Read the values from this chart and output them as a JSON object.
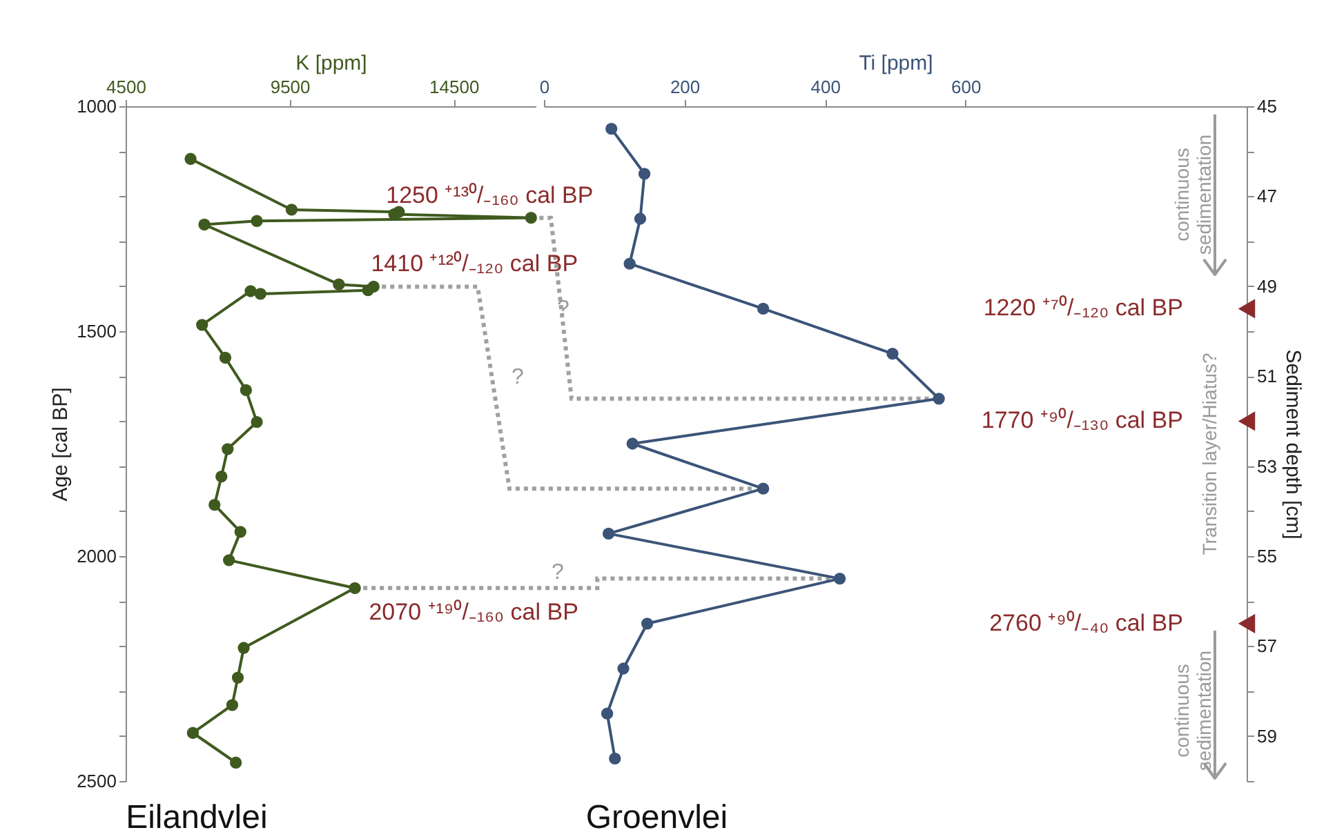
{
  "chart_data": [
    {
      "type": "line",
      "title": "Eilandvlei",
      "xlabel": "K [ppm]",
      "ylabel": "Age [cal BP]",
      "xlim": [
        4500,
        17000
      ],
      "xticks": [
        4500,
        9500,
        14500
      ],
      "ylim": [
        2500,
        1000
      ],
      "yticks": [
        1000,
        {
          "value": 1100,
          "label": null
        },
        {
          "value": 1200,
          "label": null
        },
        {
          "value": 1300,
          "label": null
        },
        {
          "value": 1400,
          "label": null
        },
        1500,
        {
          "value": 1600,
          "label": null
        },
        {
          "value": 1700,
          "label": null
        },
        {
          "value": 1800,
          "label": null
        },
        {
          "value": 1900,
          "label": null
        },
        2000,
        {
          "value": 2100,
          "label": null
        },
        {
          "value": 2200,
          "label": null
        },
        {
          "value": 2300,
          "label": null
        },
        {
          "value": 2400,
          "label": null
        },
        2500
      ],
      "grid": false,
      "marker": "circle",
      "line_style": "solid",
      "series": [
        {
          "color": "#3f5a1f",
          "x": [
            6480,
            9560,
            12830,
            12690,
            16860,
            8500,
            6900,
            11000,
            12060,
            11890,
            8610,
            8310,
            6830,
            7540,
            8170,
            8500,
            7610,
            7420,
            7210,
            8000,
            7650,
            11490,
            8100,
            7920,
            7750,
            6550,
            7860
          ],
          "values": [
            1117,
            1230,
            1235,
            1240,
            1248,
            1255,
            1263,
            1396,
            1401,
            1409,
            1417,
            1411,
            1486,
            1559,
            1631,
            1702,
            1762,
            1823,
            1886,
            1946,
            2009,
            2071,
            2204,
            2270,
            2331,
            2393,
            2459
          ]
        }
      ],
      "annotations": [
        {
          "text": "1250 ⁺¹³⁰/₋₁₆₀ cal BP",
          "x": 16860,
          "y": 1248
        },
        {
          "text": "1410 ⁺¹²⁰/₋₁₂₀ cal BP",
          "x": 12060,
          "y": 1401
        },
        {
          "text": "2070 ⁺¹⁹⁰/₋₁₆₀ cal BP",
          "x": 11490,
          "y": 2071
        },
        "?",
        "?",
        "?"
      ]
    },
    {
      "type": "line",
      "title": "Groenvlei",
      "xlabel": "Ti [ppm]",
      "ylabel": "Sediment depth [cm]",
      "xlim": [
        0,
        1000
      ],
      "xticks": [
        0,
        200,
        400,
        600
      ],
      "ylim": [
        60,
        45
      ],
      "yticks": [
        45,
        {
          "value": 46,
          "label": null
        },
        47,
        {
          "value": 48,
          "label": null
        },
        49,
        {
          "value": 50,
          "label": null
        },
        51,
        {
          "value": 52,
          "label": null
        },
        53,
        {
          "value": 54,
          "label": null
        },
        55,
        {
          "value": 56,
          "label": null
        },
        57,
        {
          "value": 58,
          "label": null
        },
        59,
        {
          "value": 60,
          "label": null
        }
      ],
      "grid": false,
      "marker": "circle",
      "line_style": "solid",
      "series": [
        {
          "color": "#3b5478",
          "x": [
            96,
            143,
            137,
            122,
            312,
            496,
            562,
            126,
            312,
            92,
            421,
            147,
            113,
            90,
            101
          ],
          "values": [
            45.5,
            46.5,
            47.5,
            48.5,
            49.5,
            50.5,
            51.5,
            52.5,
            53.5,
            54.5,
            55.5,
            56.5,
            57.5,
            58.5,
            59.5
          ]
        },
        {
          "type": "scatter",
          "color": "#8b2b2b",
          "marker": "triangle",
          "x": [
            1000,
            1000,
            1000
          ],
          "values": [
            49.5,
            52,
            56.5
          ]
        }
      ],
      "annotations": [
        {
          "text": "1220 ⁺⁷⁰/₋₁₂₀ cal BP",
          "x": 1000,
          "y": 49.5
        },
        {
          "text": "1770 ⁺⁹⁰/₋₁₃₀ cal BP",
          "x": 1000,
          "y": 52
        },
        {
          "text": "2760 ⁺⁹⁰/₋₄₀ cal BP",
          "x": 1000,
          "y": 56.5
        },
        "continuous\nsedimentation",
        "Transition layer/Hiatus?",
        "continuous\nsedimentation"
      ]
    }
  ]
}
